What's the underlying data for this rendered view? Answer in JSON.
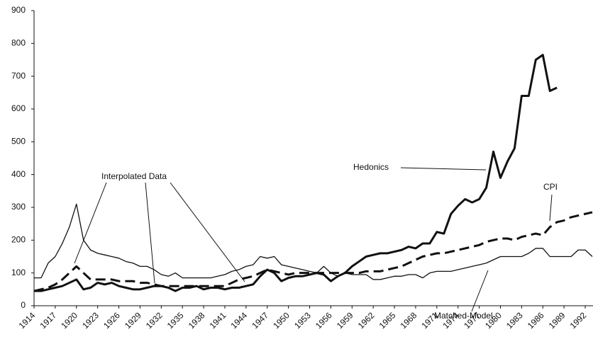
{
  "chart_data": {
    "type": "line",
    "x": [
      1914,
      1915,
      1916,
      1917,
      1918,
      1919,
      1920,
      1921,
      1922,
      1923,
      1924,
      1925,
      1926,
      1927,
      1928,
      1929,
      1930,
      1931,
      1932,
      1933,
      1934,
      1935,
      1936,
      1937,
      1938,
      1939,
      1940,
      1941,
      1942,
      1943,
      1944,
      1945,
      1946,
      1947,
      1948,
      1949,
      1950,
      1951,
      1952,
      1953,
      1954,
      1955,
      1956,
      1957,
      1958,
      1959,
      1960,
      1961,
      1962,
      1963,
      1964,
      1965,
      1966,
      1967,
      1968,
      1969,
      1970,
      1971,
      1972,
      1973,
      1974,
      1975,
      1976,
      1977,
      1978,
      1979,
      1980,
      1981,
      1982,
      1983,
      1984,
      1985,
      1986,
      1987,
      1988,
      1989,
      1990,
      1991,
      1992,
      1993
    ],
    "series": [
      {
        "name": "Hedonics",
        "color": "#111111",
        "width": 3,
        "dashed": false,
        "values": [
          45,
          45,
          50,
          55,
          60,
          70,
          80,
          50,
          55,
          70,
          65,
          70,
          60,
          55,
          50,
          50,
          55,
          60,
          60,
          55,
          45,
          55,
          55,
          60,
          50,
          55,
          55,
          50,
          55,
          55,
          60,
          65,
          90,
          110,
          100,
          75,
          85,
          90,
          90,
          95,
          100,
          95,
          75,
          90,
          100,
          120,
          135,
          150,
          155,
          160,
          160,
          165,
          170,
          180,
          175,
          190,
          190,
          225,
          220,
          280,
          305,
          325,
          315,
          325,
          360,
          470,
          390,
          440,
          480,
          640,
          640,
          750,
          765,
          655,
          665,
          null,
          null,
          null,
          null,
          null
        ]
      },
      {
        "name": "CPI",
        "color": "#111111",
        "width": 3,
        "dashed": true,
        "values": [
          45,
          50,
          55,
          65,
          80,
          100,
          120,
          100,
          80,
          80,
          80,
          80,
          75,
          75,
          75,
          70,
          70,
          65,
          60,
          60,
          60,
          60,
          60,
          60,
          60,
          60,
          60,
          60,
          70,
          80,
          85,
          90,
          100,
          110,
          105,
          100,
          95,
          100,
          100,
          100,
          100,
          100,
          100,
          100,
          100,
          100,
          100,
          105,
          105,
          105,
          110,
          115,
          120,
          130,
          140,
          150,
          155,
          160,
          160,
          165,
          170,
          175,
          180,
          185,
          195,
          200,
          205,
          205,
          200,
          210,
          215,
          220,
          215,
          240,
          255,
          260,
          270,
          275,
          280,
          285
        ]
      },
      {
        "name": "Matched-Model",
        "color": "#111111",
        "width": 1.3,
        "dashed": false,
        "values": [
          85,
          85,
          130,
          150,
          190,
          240,
          310,
          200,
          170,
          160,
          155,
          150,
          145,
          135,
          130,
          120,
          120,
          110,
          95,
          90,
          100,
          85,
          85,
          85,
          85,
          85,
          90,
          95,
          105,
          110,
          120,
          125,
          150,
          145,
          150,
          125,
          120,
          115,
          110,
          105,
          100,
          120,
          100,
          90,
          100,
          95,
          95,
          95,
          80,
          80,
          85,
          90,
          90,
          95,
          95,
          85,
          100,
          105,
          105,
          105,
          110,
          115,
          120,
          125,
          130,
          140,
          150,
          150,
          150,
          150,
          160,
          175,
          175,
          150,
          150,
          150,
          150,
          170,
          170,
          150
        ]
      }
    ],
    "annotations": [
      "Interpolated Data"
    ],
    "xlim": [
      1914,
      1993
    ],
    "ylim": [
      0,
      900
    ],
    "xticks": [
      1914,
      1917,
      1920,
      1923,
      1926,
      1929,
      1932,
      1935,
      1938,
      1941,
      1944,
      1947,
      1950,
      1953,
      1956,
      1959,
      1962,
      1965,
      1968,
      1971,
      1974,
      1977,
      1980,
      1983,
      1986,
      1989,
      1992
    ],
    "yticks": [
      0,
      100,
      200,
      300,
      400,
      500,
      600,
      700,
      800,
      900
    ]
  }
}
